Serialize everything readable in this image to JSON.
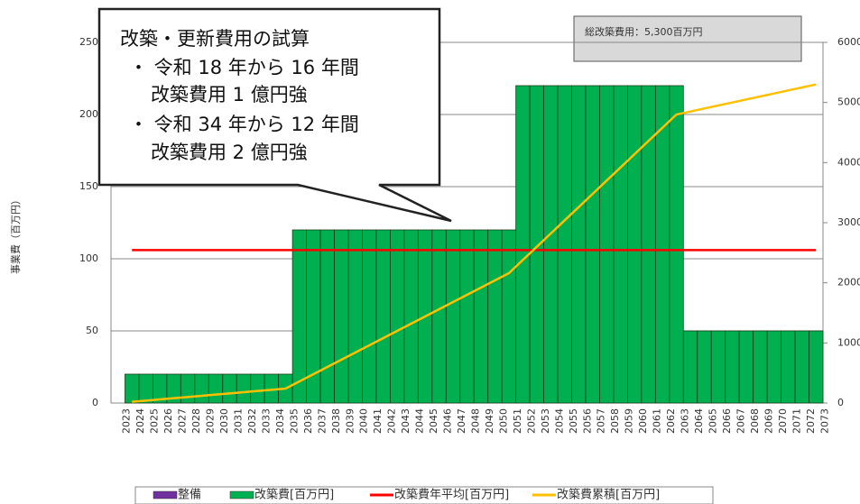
{
  "chart_data": {
    "type": "bar",
    "y_label": "事業費（百万円）",
    "total_label": "総改築費用：5,300百万円",
    "callout": [
      "改築・更新費用の試算",
      "・ 令和 18 年から 16 年間",
      "改築費用 1 億円強",
      "・ 令和 34 年から 12 年間",
      "改築費用 2 億円強"
    ],
    "categories": [
      "2023",
      "2024",
      "2025",
      "2026",
      "2027",
      "2028",
      "2029",
      "2030",
      "2031",
      "2032",
      "2033",
      "2034",
      "2035",
      "2036",
      "2037",
      "2038",
      "2039",
      "2040",
      "2041",
      "2042",
      "2043",
      "2044",
      "2045",
      "2046",
      "2047",
      "2048",
      "2049",
      "2050",
      "2051",
      "2052",
      "2053",
      "2054",
      "2055",
      "2056",
      "2057",
      "2058",
      "2059",
      "2060",
      "2061",
      "2062",
      "2063",
      "2064",
      "2065",
      "2066",
      "2067",
      "2068",
      "2069",
      "2070",
      "2071",
      "2072",
      "2073"
    ],
    "series": [
      {
        "name": "整備",
        "type": "bar",
        "color": "#7030a0",
        "values": [
          null,
          null,
          null,
          null,
          null,
          null,
          null,
          null,
          null,
          null,
          null,
          null,
          null,
          null,
          null,
          null,
          null,
          null,
          null,
          null,
          null,
          null,
          null,
          null,
          null,
          null,
          null,
          null,
          null,
          null,
          null,
          null,
          null,
          null,
          null,
          null,
          null,
          null,
          null,
          null,
          null,
          null,
          null,
          null,
          null,
          null,
          null,
          null,
          null,
          null,
          null
        ]
      },
      {
        "name": "改築費[百万円]",
        "type": "bar",
        "color": "#00b050",
        "values": [
          0,
          20,
          20,
          20,
          20,
          20,
          20,
          20,
          20,
          20,
          20,
          20,
          20,
          120,
          120,
          120,
          120,
          120,
          120,
          120,
          120,
          120,
          120,
          120,
          120,
          120,
          120,
          120,
          120,
          220,
          220,
          220,
          220,
          220,
          220,
          220,
          220,
          220,
          220,
          220,
          220,
          50,
          50,
          50,
          50,
          50,
          50,
          50,
          50,
          50,
          50
        ]
      },
      {
        "name": "改築費年平均[百万円]",
        "type": "line",
        "color": "#ff0000",
        "values": [
          null,
          106,
          106,
          106,
          106,
          106,
          106,
          106,
          106,
          106,
          106,
          106,
          106,
          106,
          106,
          106,
          106,
          106,
          106,
          106,
          106,
          106,
          106,
          106,
          106,
          106,
          106,
          106,
          106,
          106,
          106,
          106,
          106,
          106,
          106,
          106,
          106,
          106,
          106,
          106,
          106,
          106,
          106,
          106,
          106,
          106,
          106,
          106,
          106,
          106,
          106
        ]
      },
      {
        "name": "改築費累積[百万円]",
        "type": "line",
        "axis": "y2",
        "color": "#ffc000",
        "values": [
          null,
          20,
          40,
          60,
          80,
          100,
          120,
          140,
          160,
          180,
          200,
          220,
          240,
          360,
          480,
          600,
          720,
          840,
          960,
          1080,
          1200,
          1320,
          1440,
          1560,
          1680,
          1800,
          1920,
          2040,
          2160,
          2380,
          2600,
          2820,
          3040,
          3260,
          3480,
          3700,
          3920,
          4140,
          4360,
          4580,
          4800,
          4850,
          4900,
          4950,
          5000,
          5050,
          5100,
          5150,
          5200,
          5250,
          5300
        ]
      }
    ],
    "ylim": [
      0,
      250
    ],
    "yticks": [
      0,
      50,
      100,
      150,
      200,
      250
    ],
    "y2lim": [
      0,
      6000
    ],
    "y2ticks": [
      0,
      1000,
      2000,
      3000,
      4000,
      5000,
      6000
    ],
    "grid": true
  }
}
